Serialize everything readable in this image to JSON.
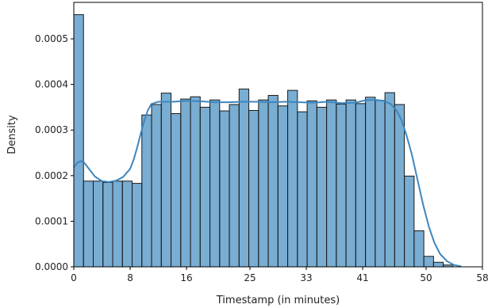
{
  "chart_data": {
    "type": "bar",
    "title": "",
    "xlabel": "Timestamp (in minutes)",
    "ylabel": "Density",
    "xlim": [
      0,
      58
    ],
    "ylim": [
      0,
      0.00058
    ],
    "x_ticks": [
      0,
      8,
      16,
      25,
      33,
      41,
      50,
      58
    ],
    "x_tick_labels": [
      "0",
      "8",
      "16",
      "25",
      "33",
      "41",
      "50",
      "58"
    ],
    "y_ticks": [
      0,
      0.0001,
      0.0002,
      0.0003,
      0.0004,
      0.0005
    ],
    "y_tick_labels": [
      "0.0000",
      "0.0001",
      "0.0002",
      "0.0003",
      "0.0004",
      "0.0005"
    ],
    "grid": false,
    "bin_edges": [
      0,
      1.38,
      2.76,
      4.14,
      5.52,
      6.9,
      8.28,
      9.66,
      11.04,
      12.42,
      13.8,
      15.18,
      16.56,
      17.94,
      19.32,
      20.7,
      22.08,
      23.46,
      24.84,
      26.22,
      27.6,
      28.98,
      30.36,
      31.74,
      33.12,
      34.5,
      35.88,
      37.26,
      38.64,
      40.02,
      41.4,
      42.78,
      44.16,
      45.54,
      46.92,
      48.3,
      49.68,
      51.06,
      52.44,
      53.82
    ],
    "densities": [
      0.000553,
      0.000188,
      0.000188,
      0.000185,
      0.000188,
      0.000188,
      0.000183,
      0.000333,
      0.000356,
      0.000381,
      0.000336,
      0.000368,
      0.000373,
      0.00035,
      0.000366,
      0.000342,
      0.000356,
      0.00039,
      0.000343,
      0.000366,
      0.000376,
      0.000353,
      0.000387,
      0.00034,
      0.000364,
      0.00035,
      0.000366,
      0.000357,
      0.000366,
      0.000358,
      0.000372,
      0.000365,
      0.000382,
      0.000356,
      0.000199,
      7.9e-05,
      2.3e-05,
      1e-05,
      4e-06
    ],
    "kde": {
      "x": [
        0,
        0.5,
        1,
        1.5,
        2,
        3,
        4,
        5,
        6,
        7,
        8,
        8.5,
        9,
        9.5,
        10,
        10.5,
        11,
        12,
        13,
        14,
        15,
        16,
        18,
        20,
        22,
        24,
        26,
        28,
        30,
        32,
        34,
        36,
        38,
        40,
        41,
        42,
        43,
        44,
        45,
        45.8,
        46.5,
        47.2,
        48,
        48.8,
        49.6,
        50.4,
        51.2,
        52,
        53,
        54,
        55
      ],
      "y": [
        0.000218,
        0.000228,
        0.000232,
        0.000228,
        0.000218,
        0.000198,
        0.000188,
        0.000186,
        0.000189,
        0.000197,
        0.000215,
        0.000235,
        0.000262,
        0.000292,
        0.00032,
        0.000343,
        0.000357,
        0.000362,
        0.000362,
        0.000362,
        0.000363,
        0.000364,
        0.000363,
        0.000361,
        0.000361,
        0.000362,
        0.000362,
        0.000361,
        0.000362,
        0.000361,
        0.00036,
        0.000362,
        0.000359,
        0.00036,
        0.000364,
        0.000366,
        0.000366,
        0.000364,
        0.000357,
        0.000343,
        0.000322,
        0.00029,
        0.000245,
        0.00019,
        0.000135,
        8.8e-05,
        5.2e-05,
        2.8e-05,
        1.2e-05,
        4e-06,
        1e-06
      ]
    },
    "colors": {
      "bar_fill": "#1f77b4",
      "kde_line": "#3d86bf"
    }
  }
}
